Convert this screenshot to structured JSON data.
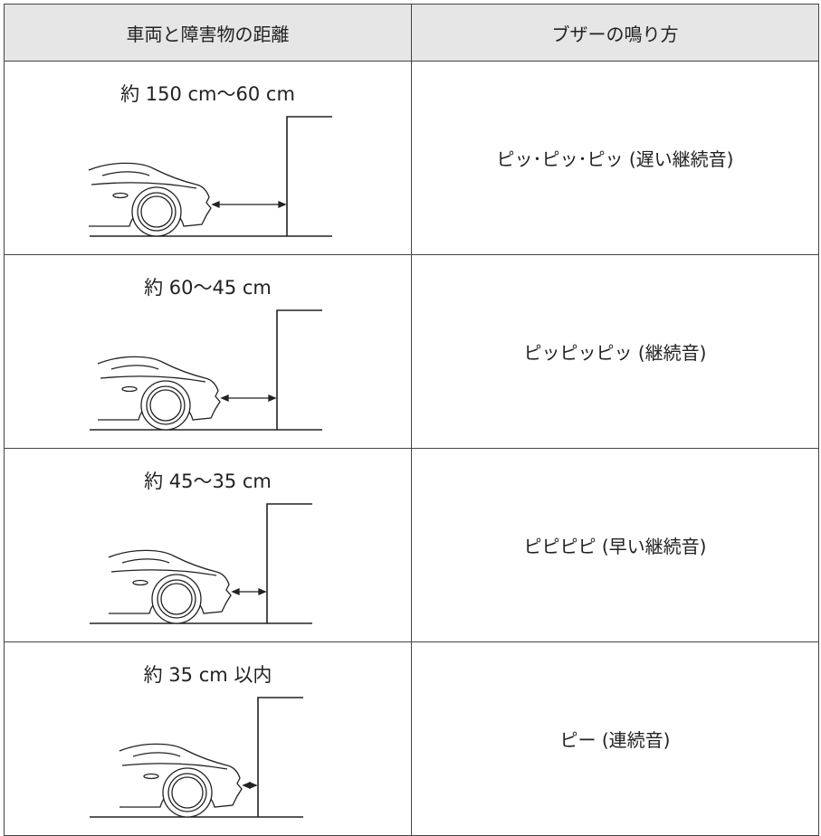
{
  "table": {
    "header": [
      "車両と障害物の距離",
      "ブザーの鳴り方"
    ],
    "rows": [
      {
        "distance": "約 150 cm〜60 cm",
        "sound": "ピッ･ピッ･ピッ (遅い継続音)"
      },
      {
        "distance": "約 60〜45 cm",
        "sound": "ピッピッピッ (継続音)"
      },
      {
        "distance": "約 45〜35 cm",
        "sound": "ピピピピ (早い継続音)"
      },
      {
        "distance": "約 35 cm 以内",
        "sound": "ピー (連続音)"
      }
    ]
  }
}
